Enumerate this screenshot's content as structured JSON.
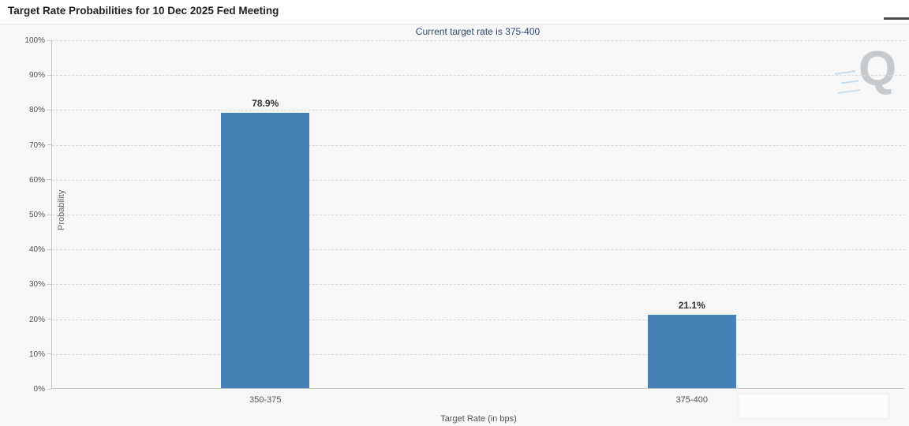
{
  "header": {
    "title": "Target Rate Probabilities for 10 Dec 2025 Fed Meeting"
  },
  "chart_data": {
    "type": "bar",
    "title": "Target Rate Probabilities for 10 Dec 2025 Fed Meeting",
    "subtitle": "Current target rate is 375-400",
    "categories": [
      "350-375",
      "375-400"
    ],
    "values": [
      78.9,
      21.1
    ],
    "value_labels": [
      "78.9%",
      "21.1%"
    ],
    "xlabel": "Target Rate (in bps)",
    "ylabel": "Probability",
    "ylim": [
      0,
      100
    ],
    "ytick_step": 10,
    "ytick_labels": [
      "0%",
      "10%",
      "20%",
      "30%",
      "40%",
      "50%",
      "60%",
      "70%",
      "80%",
      "90%",
      "100%"
    ],
    "grid": true,
    "legend": "none",
    "bar_color": "#4580b6"
  },
  "watermark": {
    "letter": "Q"
  },
  "colors": {
    "bar": "#4580b6",
    "subtitle_text": "#304976",
    "chart_background": "#f7f7f7",
    "gridline": "#d9d9d9",
    "axis_line": "#c9c9c9",
    "axis_label": "#555555",
    "title_text": "#1f1f1f",
    "data_label": "#333333"
  }
}
